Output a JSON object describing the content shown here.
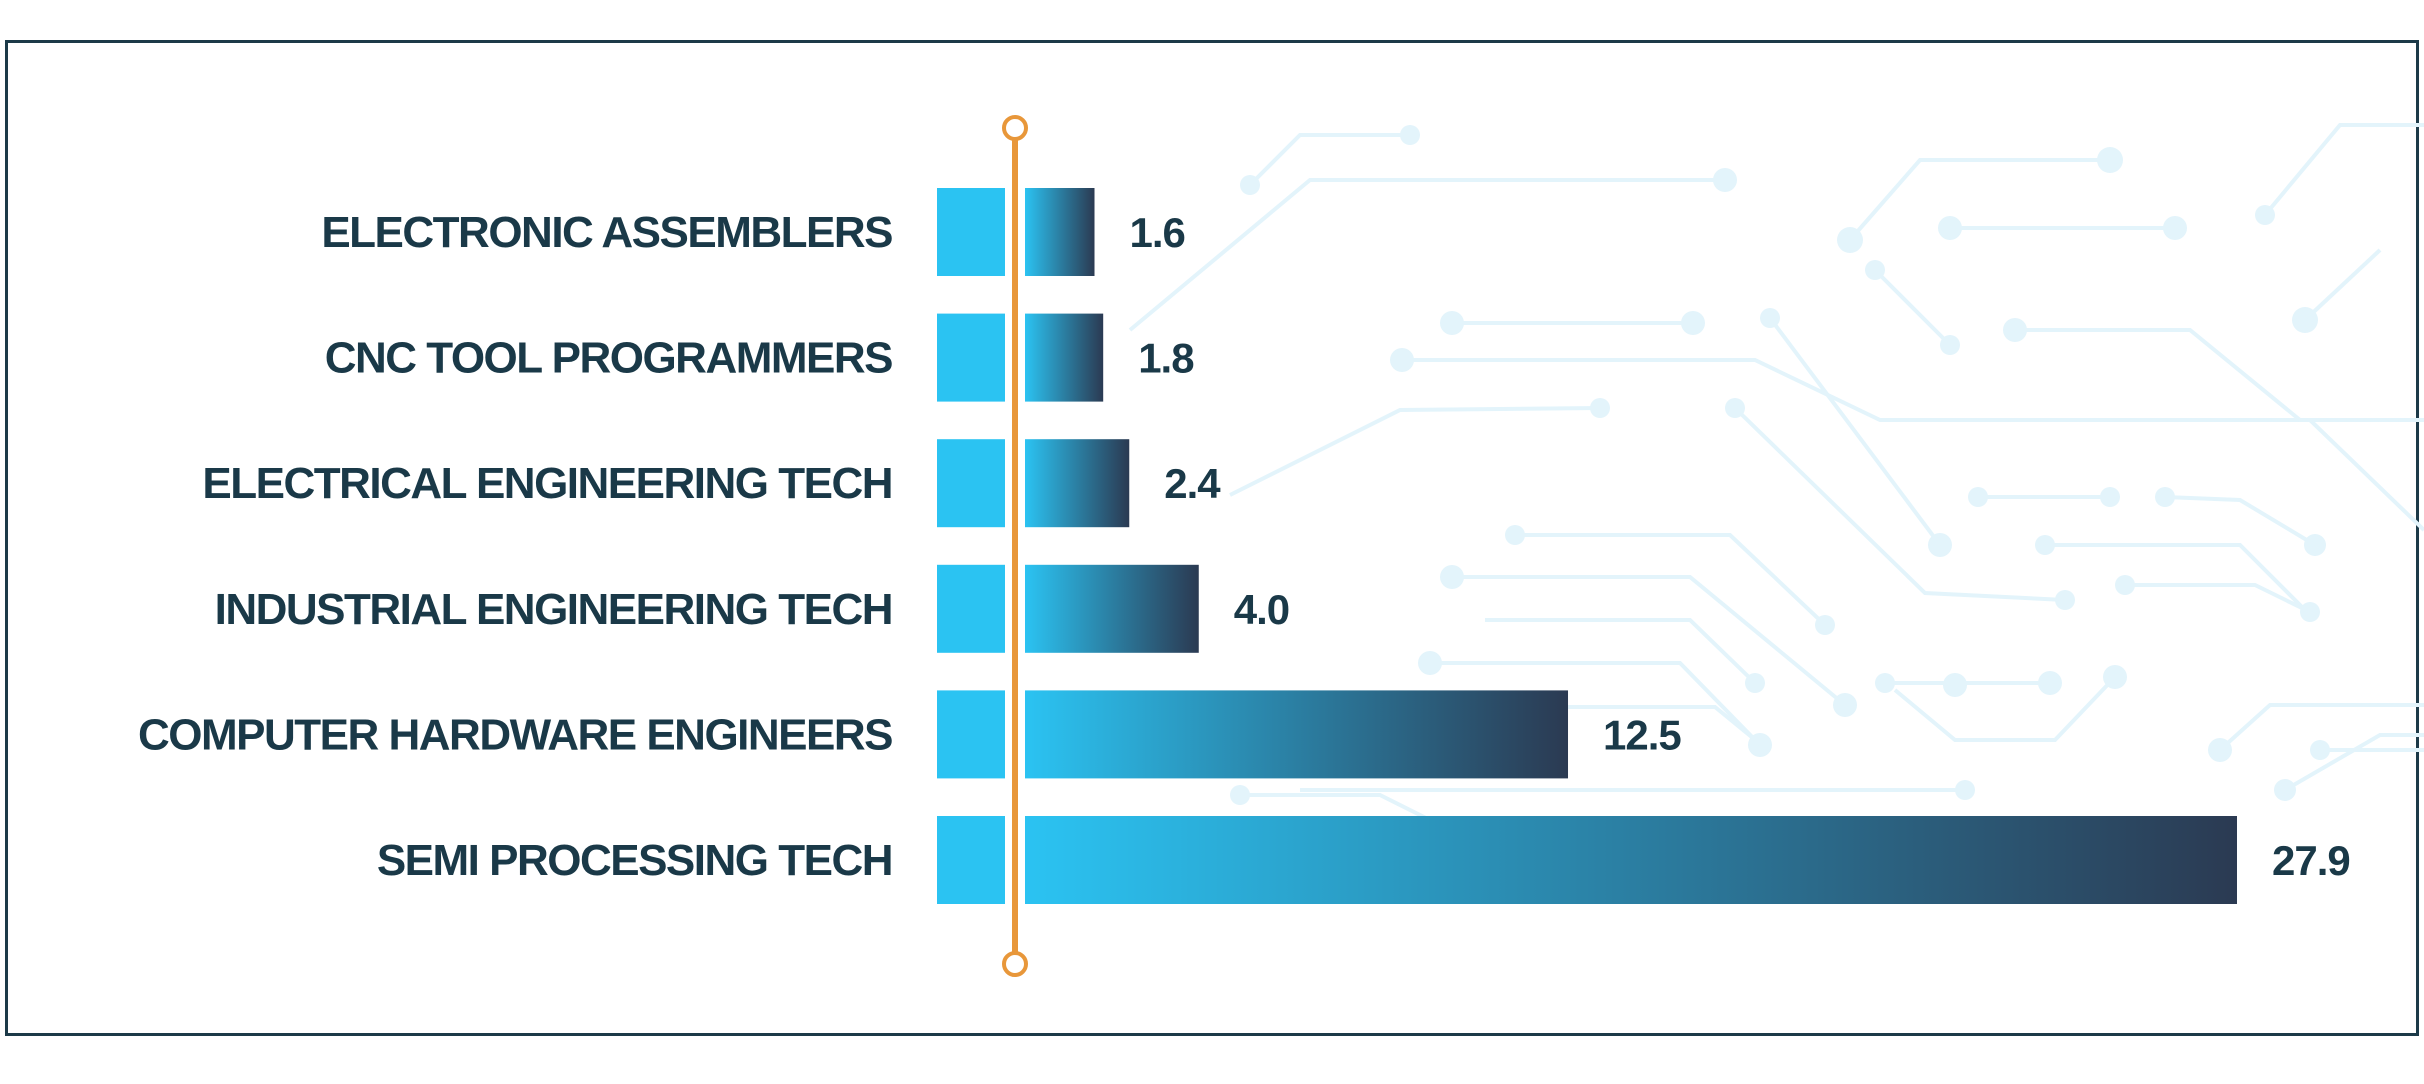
{
  "chart_data": {
    "type": "bar",
    "orientation": "horizontal",
    "categories": [
      "ELECTRONIC ASSEMBLERS",
      "CNC TOOL PROGRAMMERS",
      "ELECTRICAL ENGINEERING TECH",
      "INDUSTRIAL ENGINEERING TECH",
      "COMPUTER HARDWARE ENGINEERS",
      "SEMI PROCESSING TECH"
    ],
    "values": [
      1.6,
      1.8,
      2.4,
      4.0,
      12.5,
      27.9
    ],
    "value_labels": [
      "1.6",
      "1.8",
      "2.4",
      "4.0",
      "12.5",
      "27.9"
    ],
    "xlim": [
      0,
      27.9
    ],
    "title": "",
    "xlabel": "",
    "ylabel": "",
    "grid": false,
    "legend": "none",
    "colors": {
      "bar_start": "#2bc3f2",
      "bar_end": "#2b3a52",
      "stub": "#2bc3f2",
      "axis_marker": "#e8973a",
      "label": "#1a3948",
      "frame": "#1c3a48",
      "circuit": "#e3f4fb"
    }
  }
}
